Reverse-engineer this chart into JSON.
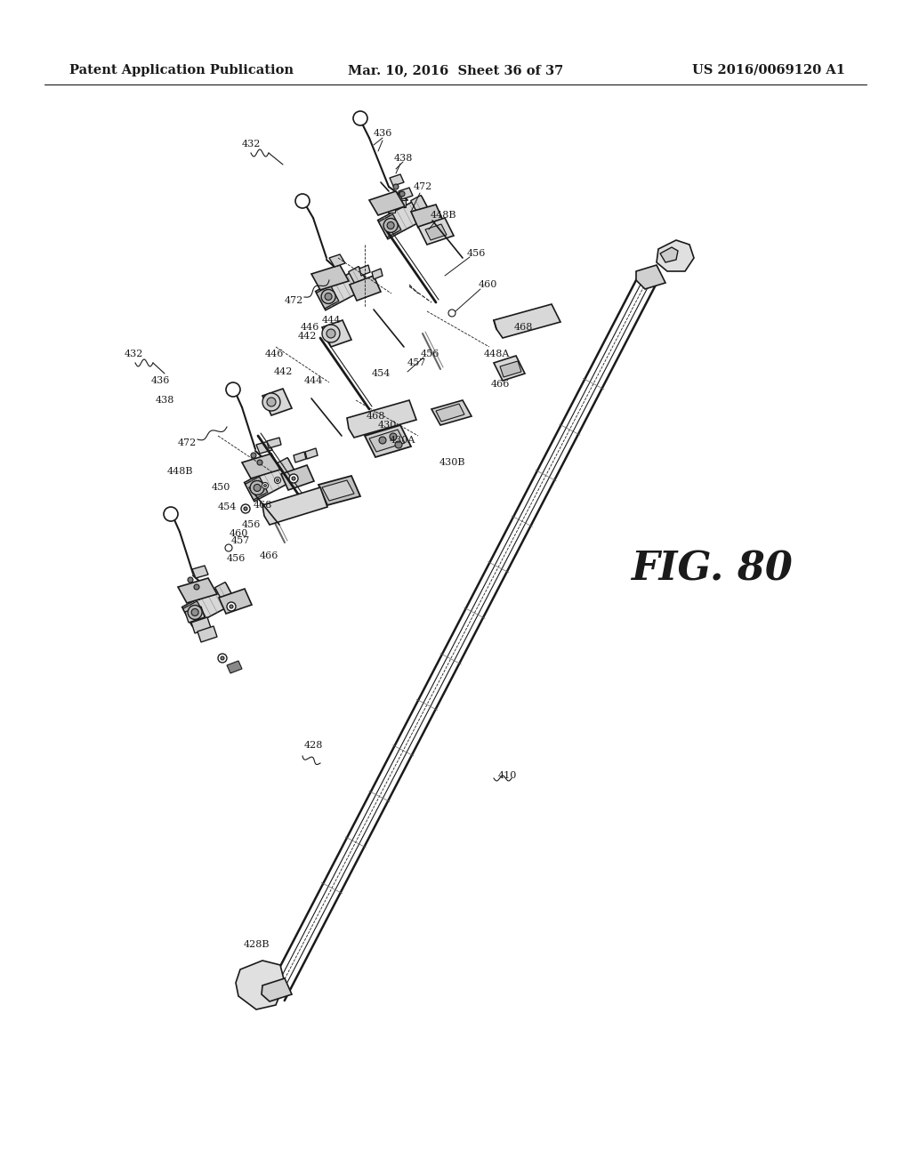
{
  "title_left": "Patent Application Publication",
  "title_center": "Mar. 10, 2016  Sheet 36 of 37",
  "title_right": "US 2016/0069120 A1",
  "fig_label": "FIG. 80",
  "background_color": "#ffffff",
  "line_color": "#1a1a1a",
  "text_color": "#1a1a1a",
  "header_fontsize": 10.5,
  "label_fontsize": 8,
  "fig_label_fontsize": 32
}
